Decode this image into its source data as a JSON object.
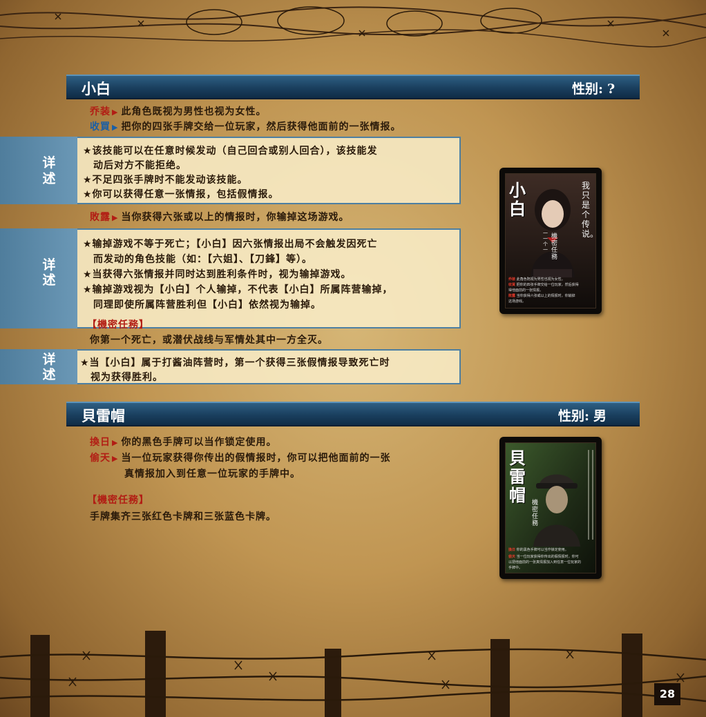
{
  "section1": {
    "name": "小白",
    "gender_label": "性别:",
    "gender_value": "?",
    "skills": [
      {
        "name": "乔装",
        "text": "此角色既视为男性也视为女性。",
        "color": "#b21d14"
      },
      {
        "name": "收買",
        "text": "把你的四张手牌交给一位玩家，然后获得他面前的一张情报。",
        "color": "#1a5fa6"
      }
    ],
    "detail_label": [
      "详",
      "述"
    ],
    "details1": [
      "★该技能可以在任意时候发动（自己回合或别人回合），该技能发",
      "　动后对方不能拒绝。",
      "★不足四张手牌时不能发动该技能。",
      "★你可以获得任意一张情报，包括假情报。"
    ],
    "lose_skill": {
      "name": "敗露",
      "text": "当你获得六张或以上的情报时，你输掉这场游戏。"
    },
    "details2": [
      "★输掉游戏不等于死亡；【小白】因六张情报出局不会触发因死亡",
      "　而发动的角色技能（如：【六姐】、【刀鋒】等）。",
      "★当获得六张情报并同时达到胜利条件时，视为输掉游戏。",
      "★输掉游戏视为【小白】个人输掉，不代表【小白】所属阵营输掉，",
      "　同理即使所属阵营胜利但【小白】依然视为输掉。"
    ],
    "mission_title": "【機密任務】",
    "mission_text": "你第一个死亡，或潜伏战线与军情处其中一方全灭。",
    "details3": [
      "★当【小白】属于打酱油阵营时，第一个获得三张假情报导致死亡时",
      "　视为获得胜利。"
    ],
    "card": {
      "name": "小白",
      "quote": "我只是个传说。",
      "side": "一一个一",
      "mission_label": "機密任務",
      "skill_lines": [
        {
          "name": "乔装",
          "text": "此角色既视为男性也视为女性。"
        },
        {
          "name": "收買",
          "text": "把你的四张手牌交给一位玩家，然后获得"
        },
        {
          "name": "",
          "text": "得他面前的一张情报。"
        },
        {
          "name": "敗露",
          "text": "当你获得六张或以上的情报时，你输掉"
        },
        {
          "name": "",
          "text": "这场游戏。"
        }
      ]
    }
  },
  "section2": {
    "name": "貝雷帽",
    "gender_label": "性别:",
    "gender_value": "男",
    "skills": [
      {
        "name": "換日",
        "text": "你的黑色手牌可以当作锁定使用。"
      },
      {
        "name": "偷天",
        "text": "当一位玩家获得你传出的假情报时，你可以把他面前的一张"
      }
    ],
    "skill_cont": "真情报加入到任意一位玩家的手牌中。",
    "mission_title": "【機密任務】",
    "mission_text": "手牌集齐三张红色卡牌和三张蓝色卡牌。",
    "card": {
      "name": "貝雷帽",
      "mission_label": "機密任務",
      "skill_lines": [
        {
          "name": "換日",
          "text": "你的黑色手牌可以当作锁定使用。"
        },
        {
          "name": "偷天",
          "text": "当一位玩家获得你传出的假情报时，你可"
        },
        {
          "name": "",
          "text": "以把他面前的一张真情报加入到任意一位玩家的"
        },
        {
          "name": "",
          "text": "手牌中。"
        }
      ]
    }
  },
  "page_number": "28"
}
